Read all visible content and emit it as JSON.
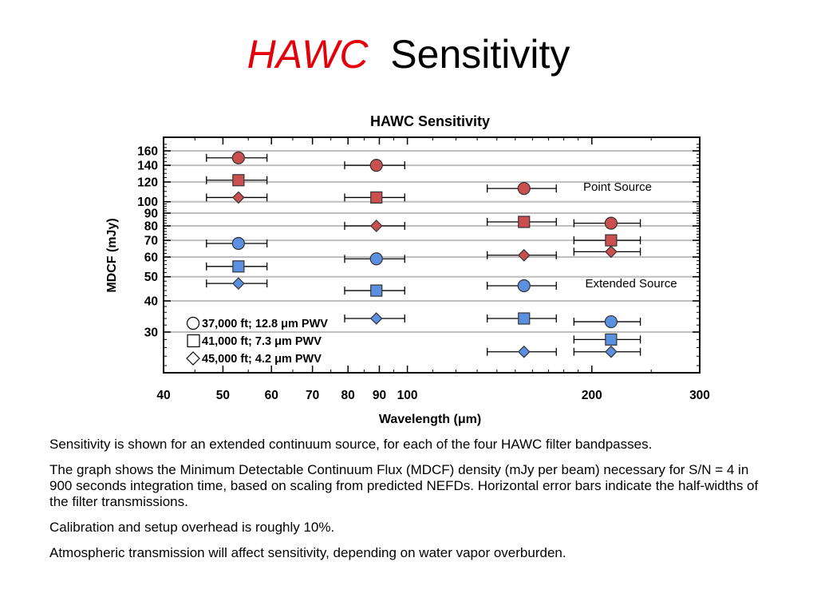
{
  "slide": {
    "title_accent": "HAWC",
    "title_rest": "Sensitivity"
  },
  "notes": [
    "Sensitivity is shown for an extended continuum source, for each of the four HAWC filter bandpasses.",
    "The graph shows the Minimum Detectable Continuum Flux (MDCF) density (mJy per beam) necessary for S/N = 4 in 900 seconds integration time, based on scaling from predicted NEFDs.    Horizontal error bars indicate the half-widths of the filter transmissions.",
    "Calibration and setup overhead is roughly 10%.",
    "Atmospheric transmission will affect sensitivity, depending on water vapor overburden."
  ],
  "colors": {
    "point_source": "#c9504f",
    "point_source_text": "#c0504d",
    "extended_source": "#5b8fe0",
    "extended_source_text": "#4f81d8",
    "title_accent": "#e3000b",
    "gridline": "#bfbfbf"
  },
  "chart_data": {
    "type": "scatter",
    "title": "HAWC Sensitivity",
    "xlabel": "Wavelength (μm)",
    "ylabel": "MDCF (mJy)",
    "xscale": "log",
    "yscale": "log",
    "xlim": [
      40,
      300
    ],
    "ylim": [
      21,
      170
    ],
    "x_ticks": [
      40,
      50,
      60,
      70,
      80,
      90,
      100,
      200,
      300
    ],
    "y_ticks": [
      30,
      40,
      50,
      60,
      70,
      80,
      90,
      100,
      120,
      140,
      160
    ],
    "grid": "horizontal",
    "legend": [
      {
        "marker": "circle",
        "label": "37,000 ft; 12.8 μm PWV"
      },
      {
        "marker": "square",
        "label": "41,000 ft; 7.3 μm PWV"
      },
      {
        "marker": "diamond",
        "label": "45,000 ft; 4.2 μm PWV"
      }
    ],
    "legend_position": "bottom-left",
    "annotations": [
      {
        "text": "Point Source",
        "group": "point"
      },
      {
        "text": "Extended Source",
        "group": "extended"
      }
    ],
    "series": [
      {
        "group": "point",
        "marker": "circle",
        "x": [
          53,
          89,
          155,
          215
        ],
        "xerr_low": [
          47,
          79,
          135,
          187
        ],
        "xerr_high": [
          59,
          99,
          175,
          240
        ],
        "y": [
          150,
          140,
          113,
          82
        ]
      },
      {
        "group": "point",
        "marker": "square",
        "x": [
          53,
          89,
          155,
          215
        ],
        "xerr_low": [
          47,
          79,
          135,
          187
        ],
        "xerr_high": [
          59,
          99,
          175,
          240
        ],
        "y": [
          122,
          104,
          83,
          70
        ]
      },
      {
        "group": "point",
        "marker": "diamond",
        "x": [
          53,
          89,
          155,
          215
        ],
        "xerr_low": [
          47,
          79,
          135,
          187
        ],
        "xerr_high": [
          59,
          99,
          175,
          240
        ],
        "y": [
          104,
          80,
          61,
          63
        ]
      },
      {
        "group": "extended",
        "marker": "circle",
        "x": [
          53,
          89,
          155,
          215
        ],
        "xerr_low": [
          47,
          79,
          135,
          187
        ],
        "xerr_high": [
          59,
          99,
          175,
          240
        ],
        "y": [
          68,
          59,
          46,
          33
        ]
      },
      {
        "group": "extended",
        "marker": "square",
        "x": [
          53,
          89,
          155,
          215
        ],
        "xerr_low": [
          47,
          79,
          135,
          187
        ],
        "xerr_high": [
          59,
          99,
          175,
          240
        ],
        "y": [
          55,
          44,
          34,
          28
        ]
      },
      {
        "group": "extended",
        "marker": "diamond",
        "x": [
          53,
          89,
          155,
          215
        ],
        "xerr_low": [
          47,
          79,
          135,
          187
        ],
        "xerr_high": [
          59,
          99,
          175,
          240
        ],
        "y": [
          47,
          34,
          25,
          25
        ]
      }
    ]
  }
}
